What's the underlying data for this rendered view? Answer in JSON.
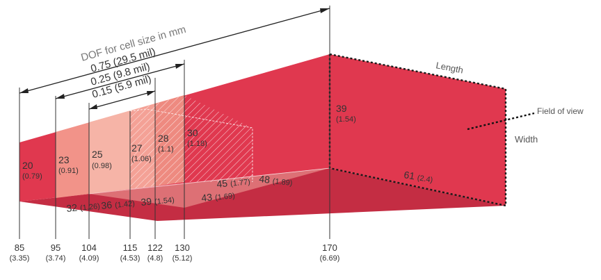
{
  "dof": {
    "title": "DOF for cell size in mm",
    "ranges": [
      {
        "label": "0.75 (29.5 mil)",
        "from": "85",
        "to": "170"
      },
      {
        "label": "0.25 (9.8 mil)",
        "from": "95",
        "to": "130"
      },
      {
        "label": "0.15 (5.9 mil)",
        "from": "104",
        "to": "122"
      }
    ]
  },
  "length_label": "Length",
  "width_label": "Width",
  "fov_label": "Field of view",
  "distance_ticks": [
    {
      "mm": "85",
      "in": "(3.35)"
    },
    {
      "mm": "95",
      "in": "(3.74)"
    },
    {
      "mm": "104",
      "in": "(4.09)"
    },
    {
      "mm": "115",
      "in": "(4.53)"
    },
    {
      "mm": "122",
      "in": "(4.8)"
    },
    {
      "mm": "130",
      "in": "(5.12)"
    },
    {
      "mm": "170",
      "in": "(6.69)"
    }
  ],
  "face_labels": [
    {
      "mm": "20",
      "in": "(0.79)"
    },
    {
      "mm": "23",
      "in": "(0.91)"
    },
    {
      "mm": "25",
      "in": "(0.98)"
    },
    {
      "mm": "27",
      "in": "(1.06)"
    },
    {
      "mm": "28",
      "in": "(1.1)"
    },
    {
      "mm": "30",
      "in": "(1.18)"
    },
    {
      "mm": "39",
      "in": "(1.54)"
    }
  ],
  "floor_labels": [
    {
      "mm": "32",
      "in": "(1.26)"
    },
    {
      "mm": "36",
      "in": "(1.42)"
    },
    {
      "mm": "39",
      "in": "(1.54)"
    },
    {
      "mm": "43",
      "in": "(1.69)"
    },
    {
      "mm": "45",
      "in": "(1.77)"
    },
    {
      "mm": "48",
      "in": "(1.89)"
    },
    {
      "mm": "61",
      "in": "(2.4)"
    }
  ],
  "colors": {
    "red": "#e0384f",
    "red_dark": "#c42d43",
    "pink_1": "#f4a19a",
    "pink_2": "#f7b9a8",
    "pink_3": "#f29389",
    "pink_4": "#ee7f77",
    "text": "#333333"
  }
}
